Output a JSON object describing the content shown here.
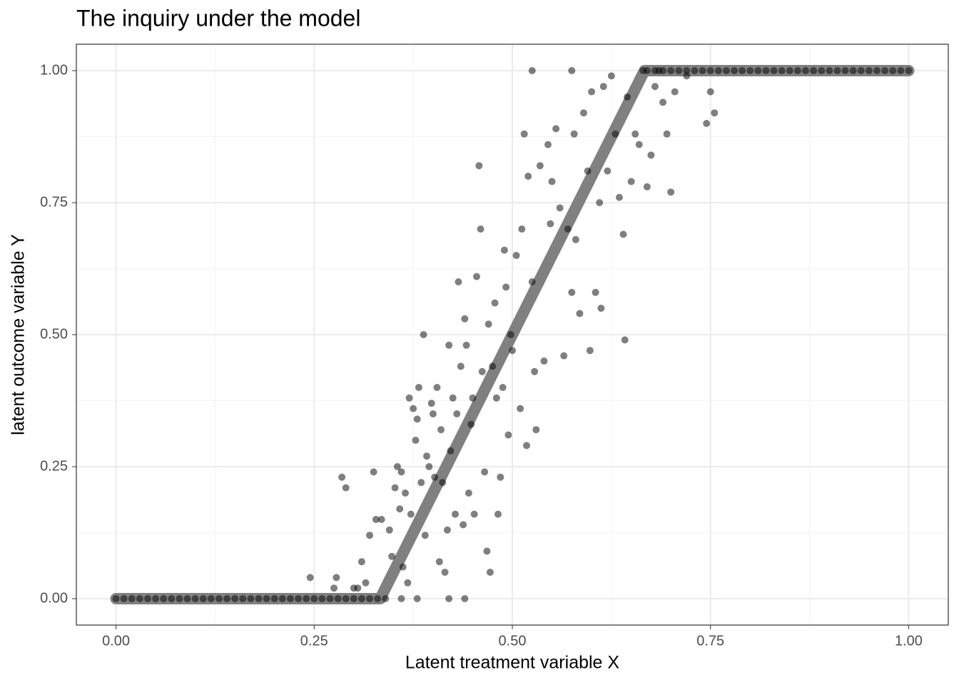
{
  "chart_data": {
    "type": "scatter",
    "title": "The inquiry under the model",
    "xlabel": "Latent treatment variable X",
    "ylabel": "latent outcome variable Y",
    "xlim": [
      -0.05,
      1.05
    ],
    "ylim": [
      -0.05,
      1.05
    ],
    "xticks": [
      {
        "value": 0,
        "label": "0.00"
      },
      {
        "value": 0.25,
        "label": "0.25"
      },
      {
        "value": 0.5,
        "label": "0.50"
      },
      {
        "value": 0.75,
        "label": "0.75"
      },
      {
        "value": 1,
        "label": "1.00"
      }
    ],
    "yticks": [
      {
        "value": 0,
        "label": "0.00"
      },
      {
        "value": 0.25,
        "label": "0.25"
      },
      {
        "value": 0.5,
        "label": "0.50"
      },
      {
        "value": 0.75,
        "label": "0.75"
      },
      {
        "value": 1,
        "label": "1.00"
      }
    ],
    "xminor": [
      0.125,
      0.375,
      0.625,
      0.875
    ],
    "yminor": [
      0.125,
      0.375,
      0.625,
      0.875
    ],
    "grid": true,
    "line": {
      "color": "#808080",
      "x": [
        0,
        0.3333,
        0.6667,
        1
      ],
      "values": [
        0,
        0,
        1,
        1
      ]
    },
    "points": {
      "color": "#000000",
      "x": [
        0.245,
        0.275,
        0.278,
        0.285,
        0.29,
        0.3,
        0.305,
        0.31,
        0.315,
        0.32,
        0.325,
        0.328,
        0.335,
        0.34,
        0.345,
        0.348,
        0.352,
        0.355,
        0.358,
        0.36,
        0.362,
        0.365,
        0.368,
        0.37,
        0.372,
        0.375,
        0.378,
        0.38,
        0.382,
        0.385,
        0.388,
        0.39,
        0.392,
        0.395,
        0.398,
        0.4,
        0.402,
        0.405,
        0.408,
        0.41,
        0.412,
        0.415,
        0.418,
        0.42,
        0.422,
        0.425,
        0.428,
        0.43,
        0.432,
        0.435,
        0.438,
        0.44,
        0.442,
        0.445,
        0.448,
        0.45,
        0.452,
        0.455,
        0.458,
        0.46,
        0.462,
        0.465,
        0.468,
        0.47,
        0.472,
        0.475,
        0.478,
        0.48,
        0.482,
        0.485,
        0.488,
        0.49,
        0.492,
        0.495,
        0.498,
        0.5,
        0.505,
        0.51,
        0.512,
        0.515,
        0.518,
        0.52,
        0.525,
        0.528,
        0.53,
        0.535,
        0.54,
        0.545,
        0.548,
        0.55,
        0.555,
        0.56,
        0.565,
        0.57,
        0.575,
        0.578,
        0.58,
        0.585,
        0.59,
        0.595,
        0.598,
        0.6,
        0.605,
        0.61,
        0.612,
        0.615,
        0.62,
        0.625,
        0.63,
        0.635,
        0.64,
        0.642,
        0.645,
        0.65,
        0.655,
        0.66,
        0.665,
        0.67,
        0.675,
        0.68,
        0.685,
        0.69,
        0.695,
        0.7,
        0.705,
        0.72,
        0.745,
        0.75,
        0.755,
        0.525,
        0.575,
        0.42,
        0.44,
        0.38,
        0.36,
        0,
        0.01,
        0.02,
        0.03,
        0.04,
        0.05,
        0.06,
        0.07,
        0.08,
        0.09,
        0.1,
        0.11,
        0.12,
        0.13,
        0.14,
        0.15,
        0.16,
        0.17,
        0.18,
        0.19,
        0.2,
        0.21,
        0.22,
        0.23,
        0.24,
        0.25,
        0.26,
        0.27,
        0.28,
        0.29,
        0.3,
        0.31,
        0.32,
        0.33,
        0.67,
        0.68,
        0.69,
        0.7,
        0.71,
        0.72,
        0.73,
        0.74,
        0.75,
        0.76,
        0.77,
        0.78,
        0.79,
        0.8,
        0.81,
        0.82,
        0.83,
        0.84,
        0.85,
        0.86,
        0.87,
        0.88,
        0.89,
        0.9,
        0.91,
        0.92,
        0.93,
        0.94,
        0.95,
        0.96,
        0.97,
        0.98,
        0.99,
        1
      ],
      "values": [
        0.04,
        0.02,
        0.04,
        0.23,
        0.21,
        0.02,
        0.02,
        0.07,
        0.03,
        0.12,
        0.24,
        0.15,
        0.15,
        0,
        0.13,
        0.08,
        0.21,
        0.25,
        0.17,
        0.24,
        0.06,
        0.2,
        0.03,
        0.38,
        0.16,
        0.36,
        0.3,
        0.34,
        0.4,
        0.22,
        0.5,
        0.12,
        0.27,
        0.25,
        0.37,
        0.35,
        0.23,
        0.4,
        0.07,
        0.32,
        0.22,
        0.05,
        0.13,
        0.48,
        0.28,
        0.38,
        0.16,
        0.35,
        0.6,
        0.44,
        0.14,
        0.53,
        0.48,
        0.2,
        0.33,
        0.38,
        0.16,
        0.61,
        0.82,
        0.7,
        0.43,
        0.24,
        0.09,
        0.52,
        0.05,
        0.44,
        0.56,
        0.38,
        0.16,
        0.23,
        0.4,
        0.66,
        0.59,
        0.31,
        0.5,
        0.47,
        0.65,
        0.36,
        0.7,
        0.88,
        0.29,
        0.8,
        0.6,
        0.43,
        0.32,
        0.82,
        0.45,
        0.86,
        0.71,
        0.79,
        0.89,
        0.74,
        0.46,
        0.7,
        0.58,
        0.88,
        0.68,
        0.54,
        0.92,
        0.81,
        0.47,
        0.96,
        0.58,
        0.75,
        0.55,
        0.97,
        0.81,
        0.99,
        0.88,
        0.76,
        0.69,
        0.49,
        0.95,
        0.79,
        0.88,
        0.86,
        1,
        0.78,
        0.84,
        0.97,
        1,
        0.94,
        0.88,
        0.77,
        0.96,
        0.99,
        0.9,
        0.96,
        0.92,
        1,
        1,
        0,
        0,
        0,
        0,
        0,
        0,
        0,
        0,
        0,
        0,
        0,
        0,
        0,
        0,
        0,
        0,
        0,
        0,
        0,
        0,
        0,
        0,
        0,
        0,
        0,
        0,
        0,
        0,
        0,
        0,
        0,
        0,
        0,
        0,
        0,
        0,
        0,
        0,
        1,
        1,
        1,
        1,
        1,
        1,
        1,
        1,
        1,
        1,
        1,
        1,
        1,
        1,
        1,
        1,
        1,
        1,
        1,
        1,
        1,
        1,
        1,
        1,
        1,
        1,
        1,
        1,
        1,
        1,
        1,
        1,
        1,
        1
      ]
    }
  }
}
